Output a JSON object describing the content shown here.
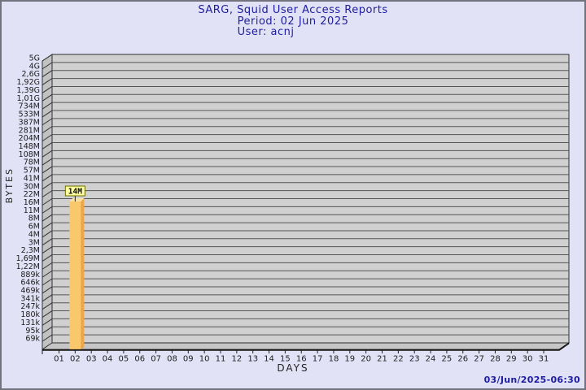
{
  "header": {
    "title": "SARG, Squid User Access Reports",
    "period": "Period: 02 Jun 2025",
    "user": "User: acnj"
  },
  "footer": {
    "generated": "03/Jun/2025-06:30"
  },
  "chart_data": {
    "type": "bar",
    "title": "SARG, Squid User Access Reports",
    "period": "Period: 02 Jun 2025",
    "user": "User: acnj",
    "xlabel": "DAYS",
    "ylabel": "BYTES",
    "y_scale": "log",
    "y_tick_labels": [
      "5G",
      "4G",
      "2,6G",
      "1,92G",
      "1,39G",
      "1,01G",
      "734M",
      "533M",
      "387M",
      "281M",
      "204M",
      "148M",
      "108M",
      "78M",
      "57M",
      "41M",
      "30M",
      "22M",
      "16M",
      "11M",
      "8M",
      "6M",
      "4M",
      "3M",
      "2,3M",
      "1,69M",
      "1,22M",
      "889k",
      "646k",
      "469k",
      "341k",
      "247k",
      "180k",
      "131k",
      "95k",
      "69k"
    ],
    "categories": [
      "01",
      "02",
      "03",
      "04",
      "05",
      "06",
      "07",
      "08",
      "09",
      "10",
      "11",
      "12",
      "13",
      "14",
      "15",
      "16",
      "17",
      "18",
      "19",
      "20",
      "21",
      "22",
      "23",
      "24",
      "25",
      "26",
      "27",
      "28",
      "29",
      "30",
      "31"
    ],
    "values": [
      null,
      14000000,
      null,
      null,
      null,
      null,
      null,
      null,
      null,
      null,
      null,
      null,
      null,
      null,
      null,
      null,
      null,
      null,
      null,
      null,
      null,
      null,
      null,
      null,
      null,
      null,
      null,
      null,
      null,
      null,
      null
    ],
    "bar_value_labels": [
      null,
      "14M",
      null,
      null,
      null,
      null,
      null,
      null,
      null,
      null,
      null,
      null,
      null,
      null,
      null,
      null,
      null,
      null,
      null,
      null,
      null,
      null,
      null,
      null,
      null,
      null,
      null,
      null,
      null,
      null,
      null
    ],
    "colors": {
      "page_bg": "#E2E2F7",
      "plot_bg": "#D0D0D0",
      "wall_grey": "#C2C2C2",
      "grid": "#555555",
      "axis_dark": "#1A1A1A",
      "bar_face": "#FAC86C",
      "bar_side": "#EFA64B",
      "bar_top": "#FCE0A0",
      "label_box_bg": "#FFFF9E",
      "label_box_border": "#6E6E00",
      "accent_text": "#1D1DA0"
    }
  }
}
